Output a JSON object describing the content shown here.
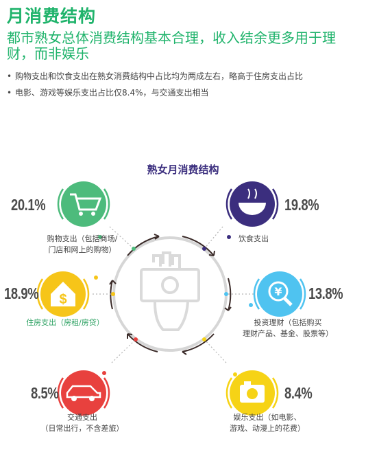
{
  "header": {
    "title": "月消费结构",
    "subtitle": "都市熟女总体消费结构基本合理，收入结余更多用于理财，而非娱乐",
    "bullets": [
      "购物支出和饮食支出在熟女消费结构中占比均为两成左右，略高于住房支出占比",
      "电影、游戏等娱乐支出占比仅8.4%，与交通支出相当"
    ]
  },
  "colors": {
    "title_green": "#1fb36b",
    "chart_title": "#3b2e7e",
    "shopping": "#4dbb7c",
    "food": "#3b2e7e",
    "housing": "#f6c519",
    "investment": "#4fc3f0",
    "transport": "#e8413e",
    "entertainment": "#f6d316"
  },
  "chart_data": {
    "type": "pie",
    "title": "熟女月消费结构",
    "unit": "%",
    "categories": [
      {
        "key": "shopping",
        "value": 20.1,
        "value_label": "20.1%",
        "label_lines": [
          "购物支出（包括商场/",
          "门店和网上的购物）"
        ],
        "icon": "shopping-cart-icon",
        "color": "#4dbb7c"
      },
      {
        "key": "food",
        "value": 19.8,
        "value_label": "19.8%",
        "label_lines": [
          "饮食支出"
        ],
        "icon": "bowl-icon",
        "color": "#3b2e7e"
      },
      {
        "key": "housing",
        "value": 18.9,
        "value_label": "18.9%",
        "label_lines": [
          "住房支出（房租/房贷）"
        ],
        "icon": "house-dollar-icon",
        "color": "#f6c519"
      },
      {
        "key": "investment",
        "value": 13.8,
        "value_label": "13.8%",
        "label_lines": [
          "投资理财（包括购买",
          "理财产品、基金、股票等）"
        ],
        "icon": "magnifier-yen-icon",
        "color": "#4fc3f0"
      },
      {
        "key": "transport",
        "value": 8.5,
        "value_label": "8.5%",
        "label_lines": [
          "交通支出",
          "（日常出行，不含差旅）"
        ],
        "icon": "car-icon",
        "color": "#e8413e"
      },
      {
        "key": "entertainment",
        "value": 8.4,
        "value_label": "8.4%",
        "label_lines": [
          "娱乐支出（如电影、",
          "游戏、动漫上的花费）"
        ],
        "icon": "camera-icon",
        "color": "#f6d316"
      }
    ]
  }
}
